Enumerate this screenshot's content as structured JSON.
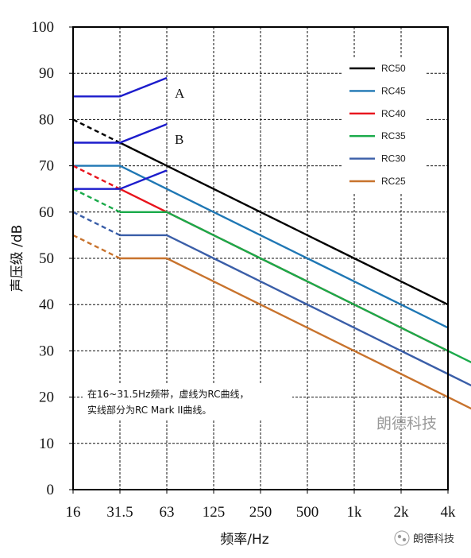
{
  "chart_data": {
    "type": "line",
    "ylabel": "声压级 /dB",
    "xlabel": "频率/Hz",
    "categories": [
      "16",
      "31.5",
      "63",
      "125",
      "250",
      "500",
      "1k",
      "2k",
      "4k"
    ],
    "ylim": [
      0,
      100
    ],
    "yticks": [
      "0",
      "10",
      "20",
      "30",
      "40",
      "50",
      "60",
      "70",
      "80",
      "90",
      "100"
    ],
    "grid": true,
    "legend_position": "top-right",
    "series": [
      {
        "name": "RC50",
        "color": "#000000",
        "dashed": [
          80,
          75
        ],
        "solid": [
          75,
          70,
          65,
          60,
          55,
          50,
          45,
          40
        ]
      },
      {
        "name": "RC45",
        "color": "#1f77b4",
        "solid": [
          70,
          70,
          65,
          60,
          55,
          50,
          45,
          40,
          35
        ]
      },
      {
        "name": "RC40",
        "color": "#e8141c",
        "dashed": [
          70,
          65
        ],
        "solid": [
          65,
          60,
          55,
          50,
          45,
          40,
          35,
          30
        ]
      },
      {
        "name": "RC35",
        "color": "#1aaa4a",
        "dashed": [
          65,
          60
        ],
        "solid": [
          60,
          60,
          55,
          50,
          45,
          40,
          35,
          30,
          25
        ]
      },
      {
        "name": "RC30",
        "color": "#3a5ea8",
        "dashed": [
          60,
          55
        ],
        "solid": [
          55,
          55,
          50,
          45,
          40,
          35,
          30,
          25,
          20
        ]
      },
      {
        "name": "RC25",
        "color": "#c8732d",
        "dashed": [
          55,
          50
        ],
        "solid": [
          50,
          50,
          45,
          40,
          35,
          30,
          25,
          20,
          15
        ]
      }
    ],
    "mark_ii_segments": {
      "color": "#1c1ccc",
      "lines": [
        {
          "label": "A",
          "values": [
            85,
            85,
            89
          ]
        },
        {
          "label": "B",
          "values": [
            75,
            75,
            79
          ]
        },
        {
          "label": "",
          "values": [
            65,
            65,
            69
          ]
        }
      ]
    },
    "annotation": [
      "在16~31.5Hz频带，虚线为RC曲线，",
      "实线部分为RC Mark II曲线。"
    ],
    "watermark": "朗德科技"
  },
  "footer": {
    "brand": "朗德科技"
  }
}
